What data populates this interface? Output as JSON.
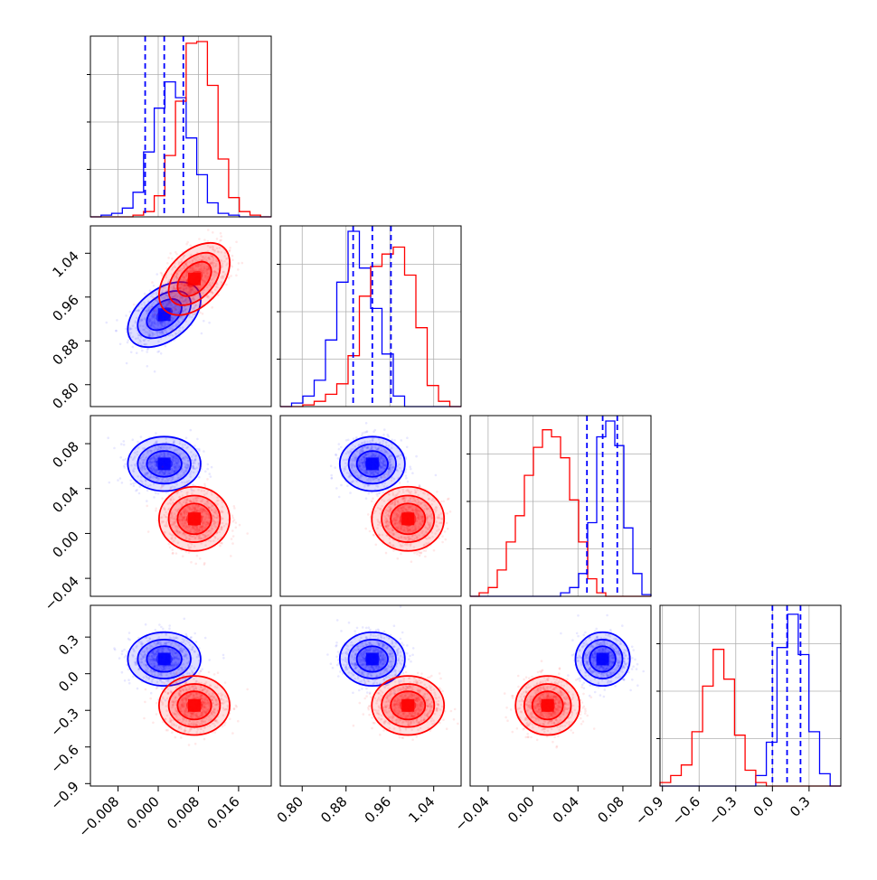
{
  "chart_data": {
    "type": "corner",
    "params": [
      {
        "id": "p0",
        "lim": [
          -0.0135,
          0.0225
        ],
        "ticks": [
          "−0.008",
          "0.000",
          "0.008",
          "0.016"
        ],
        "tick_values": [
          -0.008,
          0.0,
          0.008,
          0.016
        ]
      },
      {
        "id": "p1",
        "lim": [
          0.76,
          1.09
        ],
        "ticks": [
          "0.80",
          "0.88",
          "0.96",
          "1.04"
        ],
        "tick_values": [
          0.8,
          0.88,
          0.96,
          1.04
        ]
      },
      {
        "id": "p2",
        "lim": [
          -0.056,
          0.105
        ],
        "ticks": [
          "−0.04",
          "0.00",
          "0.04",
          "0.08"
        ],
        "tick_values": [
          -0.04,
          0.0,
          0.04,
          0.08
        ]
      },
      {
        "id": "p3",
        "lim": [
          -0.92,
          0.56
        ],
        "ticks": [
          "−0.9",
          "−0.6",
          "−0.3",
          "0.0",
          "0.3"
        ],
        "tick_values": [
          -0.9,
          -0.6,
          -0.3,
          0.0,
          0.3
        ]
      }
    ],
    "series": [
      {
        "color": "#0000ff",
        "mean": [
          0.0012,
          0.928,
          0.062,
          0.12
        ],
        "sigma": [
          0.0033,
          0.027,
          0.011,
          0.1
        ],
        "rho": [
          [
            1,
            0.45,
            0,
            0
          ],
          [
            0.45,
            1,
            0,
            0
          ],
          [
            0,
            0,
            1,
            0
          ],
          [
            0,
            0,
            0,
            1
          ]
        ],
        "quantiles": [
          [
            -0.0026,
            0.0012,
            0.005
          ],
          [
            0.893,
            0.928,
            0.962
          ],
          [
            0.048,
            0.062,
            0.075
          ],
          [
            0.0,
            0.12,
            0.23
          ]
        ]
      },
      {
        "color": "#ff0000",
        "mean": [
          0.0072,
          0.993,
          0.013,
          -0.26
        ],
        "sigma": [
          0.0032,
          0.03,
          0.013,
          0.11
        ],
        "rho": [
          [
            1,
            0.45,
            0,
            0
          ],
          [
            0.45,
            1,
            0,
            0
          ],
          [
            0,
            0,
            1,
            0
          ],
          [
            0,
            0,
            0,
            1
          ]
        ],
        "quantiles": []
      }
    ],
    "quantile_series_color": "#0000ff",
    "histograms": [
      {
        "param": 0,
        "edges": [
          -0.0135,
          0.0225
        ],
        "blue": [
          0.0,
          0.01,
          0.02,
          0.05,
          0.14,
          0.37,
          0.62,
          0.77,
          0.68,
          0.45,
          0.24,
          0.08,
          0.02,
          0.01,
          0.0,
          0.0,
          0.0
        ],
        "red": [
          0.0,
          0.0,
          0.0,
          0.0,
          0.01,
          0.03,
          0.12,
          0.35,
          0.66,
          0.99,
          1.0,
          0.75,
          0.33,
          0.11,
          0.03,
          0.01,
          0.0
        ]
      },
      {
        "param": 1,
        "blue": [
          0.0,
          0.02,
          0.06,
          0.15,
          0.38,
          0.71,
          1.0,
          0.79,
          0.56,
          0.3,
          0.06,
          0.0,
          0.0,
          0.0,
          0.0,
          0.0
        ],
        "red": [
          0.0,
          0.0,
          0.01,
          0.03,
          0.07,
          0.13,
          0.29,
          0.63,
          0.8,
          0.87,
          0.91,
          0.75,
          0.45,
          0.12,
          0.03,
          0.0
        ]
      },
      {
        "param": 2,
        "blue": [
          0.0,
          0.0,
          0.0,
          0.0,
          0.0,
          0.0,
          0.0,
          0.0,
          0.0,
          0.0,
          0.02,
          0.05,
          0.13,
          0.42,
          0.91,
          1.0,
          0.86,
          0.39,
          0.13,
          0.01
        ],
        "red": [
          0.0,
          0.02,
          0.05,
          0.15,
          0.31,
          0.46,
          0.69,
          0.85,
          0.95,
          0.91,
          0.79,
          0.55,
          0.31,
          0.1,
          0.02,
          0.0,
          0.0,
          0.0,
          0.0,
          0.0
        ]
      },
      {
        "param": 3,
        "blue": [
          0.0,
          0.0,
          0.0,
          0.0,
          0.0,
          0.0,
          0.0,
          0.0,
          0.0,
          0.06,
          0.25,
          0.79,
          0.98,
          0.75,
          0.31,
          0.07,
          0.0
        ],
        "red": [
          0.02,
          0.06,
          0.12,
          0.31,
          0.57,
          0.78,
          0.61,
          0.29,
          0.09,
          0.02,
          0.0,
          0.0,
          0.0,
          0.0,
          0.0,
          0.0,
          0.0
        ]
      }
    ],
    "grid": true
  }
}
